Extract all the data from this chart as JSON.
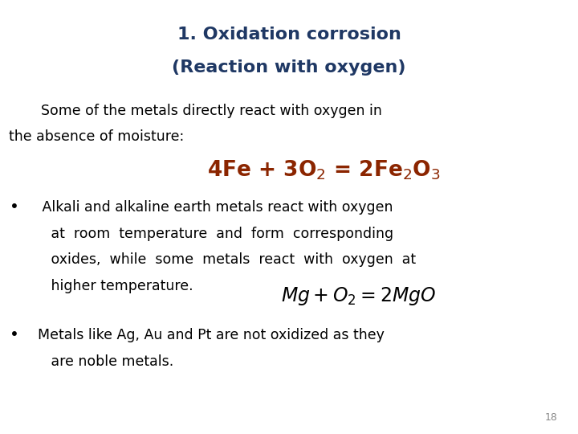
{
  "title_line1": "1. Oxidation corrosion",
  "title_line2": "(Reaction with oxygen)",
  "title_color": "#1F3864",
  "body_color": "#000000",
  "equation1_color": "#8B2500",
  "bg_color": "#FFFFFF",
  "page_number": "18",
  "title_fontsize": 16,
  "body_fontsize": 12.5,
  "eq1_fontsize": 19,
  "eq2_fontsize": 17
}
